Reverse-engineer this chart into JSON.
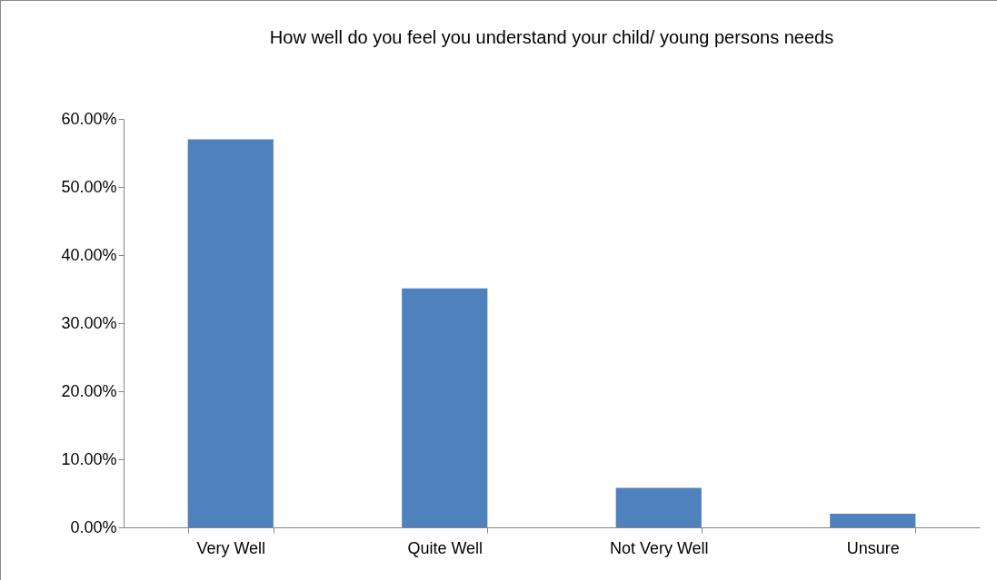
{
  "chart_data": {
    "type": "bar",
    "title": "How well do you feel you understand your child/ young persons needs",
    "categories": [
      "Very Well",
      "Quite Well",
      "Not Very Well",
      "Unsure"
    ],
    "values": [
      57,
      35.1,
      5.8,
      2
    ],
    "color": "#4f81bd",
    "ylim": [
      0,
      60
    ],
    "yticks": [
      {
        "value": 0,
        "label": "0.00%"
      },
      {
        "value": 10,
        "label": "10.00%"
      },
      {
        "value": 20,
        "label": "20.00%"
      },
      {
        "value": 30,
        "label": "30.00%"
      },
      {
        "value": 40,
        "label": "40.00%"
      },
      {
        "value": 50,
        "label": "50.00%"
      },
      {
        "value": 60,
        "label": "60.00%"
      }
    ],
    "grid": false,
    "legend": false
  }
}
